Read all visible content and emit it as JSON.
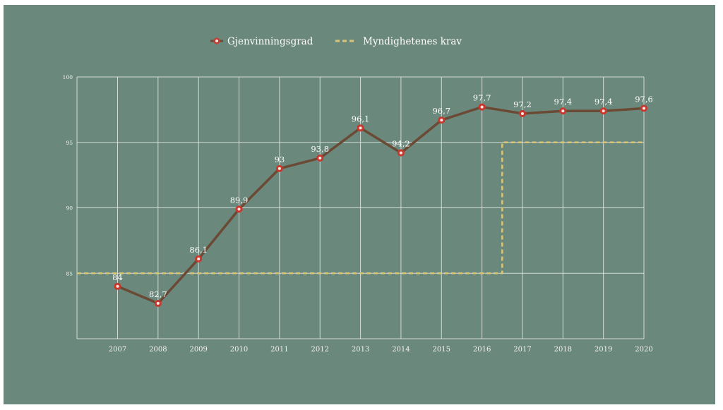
{
  "chart_data": {
    "type": "line",
    "x": [
      "2007",
      "2008",
      "2009",
      "2010",
      "2011",
      "2012",
      "2013",
      "2014",
      "2015",
      "2016",
      "2017",
      "2018",
      "2019",
      "2020"
    ],
    "series": [
      {
        "name": "Gjenvinningsgrad",
        "values": [
          84,
          82.7,
          86.1,
          89.9,
          93,
          93.8,
          96.1,
          94.2,
          96.7,
          97.7,
          97.2,
          97.4,
          97.4,
          97.6
        ],
        "labels": [
          "84",
          "82,7",
          "86,1",
          "89,9",
          "93",
          "93,8",
          "96,1",
          "94,2",
          "96,7",
          "97,7",
          "97,2",
          "97,4",
          "97,4",
          "97,6"
        ],
        "color": "#6b4a35",
        "marker_color": "#c8382e"
      },
      {
        "name": "Myndighetenes krav",
        "style": "dashed-step",
        "values": [
          85,
          85,
          85,
          85,
          85,
          85,
          85,
          85,
          85,
          85,
          95,
          95,
          95,
          95
        ],
        "color": "#d9c477"
      }
    ],
    "ylim": [
      80,
      100
    ],
    "yticks": [
      85,
      90,
      95,
      100
    ],
    "grid": true,
    "legend": "top-center",
    "colors": {
      "background": "#6b887c",
      "grid": "#d2dbd5"
    }
  }
}
